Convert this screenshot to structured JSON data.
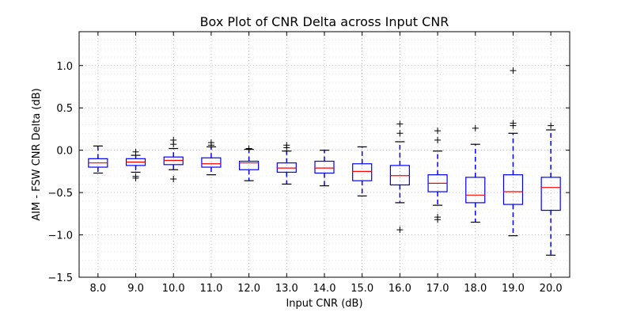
{
  "chart_data": {
    "type": "box",
    "title": "Box Plot of CNR Delta across Input CNR",
    "xlabel": "Input CNR (dB)",
    "ylabel": "AIM - FSW CNR Delta (dB)",
    "ylim": [
      -1.5,
      1.4
    ],
    "yticks": [
      -1.5,
      -1.0,
      -0.5,
      0.0,
      0.5,
      1.0
    ],
    "ytick_labels": [
      "−1.5",
      "−1.0",
      "−0.5",
      "0.0",
      "0.5",
      "1.0"
    ],
    "grid": true,
    "colors": {
      "box": "#0000ff",
      "median": "#ff0000",
      "flier": "#000000",
      "whisker_cap": "#000000",
      "grid": "#b0b0b0"
    },
    "categories": [
      "8.0",
      "9.0",
      "10.0",
      "11.0",
      "12.0",
      "13.0",
      "14.0",
      "15.0",
      "16.0",
      "17.0",
      "18.0",
      "19.0",
      "20.0"
    ],
    "boxes": [
      {
        "whislo": -0.27,
        "q1": -0.2,
        "med": -0.15,
        "q3": -0.1,
        "whishi": 0.05,
        "fliers": []
      },
      {
        "whislo": -0.26,
        "q1": -0.18,
        "med": -0.14,
        "q3": -0.1,
        "whishi": -0.06,
        "fliers": [
          -0.31,
          -0.33,
          -0.02
        ]
      },
      {
        "whislo": -0.23,
        "q1": -0.17,
        "med": -0.12,
        "q3": -0.08,
        "whishi": 0.02,
        "fliers": [
          -0.34,
          0.07,
          0.12
        ]
      },
      {
        "whislo": -0.29,
        "q1": -0.2,
        "med": -0.16,
        "q3": -0.09,
        "whishi": 0.04,
        "fliers": [
          0.06,
          0.09
        ]
      },
      {
        "whislo": -0.36,
        "q1": -0.23,
        "med": -0.15,
        "q3": -0.13,
        "whishi": 0.01,
        "fliers": [
          0.02
        ]
      },
      {
        "whislo": -0.4,
        "q1": -0.26,
        "med": -0.21,
        "q3": -0.15,
        "whishi": -0.01,
        "fliers": [
          0.03,
          0.06
        ]
      },
      {
        "whislo": -0.42,
        "q1": -0.27,
        "med": -0.21,
        "q3": -0.13,
        "whishi": 0.0,
        "fliers": []
      },
      {
        "whislo": -0.54,
        "q1": -0.36,
        "med": -0.25,
        "q3": -0.16,
        "whishi": 0.04,
        "fliers": []
      },
      {
        "whislo": -0.62,
        "q1": -0.41,
        "med": -0.3,
        "q3": -0.18,
        "whishi": 0.1,
        "fliers": [
          0.31,
          0.2,
          -0.94
        ]
      },
      {
        "whislo": -0.65,
        "q1": -0.49,
        "med": -0.39,
        "q3": -0.29,
        "whishi": -0.01,
        "fliers": [
          0.23,
          0.12,
          -0.79,
          -0.82
        ]
      },
      {
        "whislo": -0.85,
        "q1": -0.62,
        "med": -0.53,
        "q3": -0.32,
        "whishi": 0.07,
        "fliers": [
          0.26
        ]
      },
      {
        "whislo": -1.01,
        "q1": -0.64,
        "med": -0.49,
        "q3": -0.29,
        "whishi": 0.2,
        "fliers": [
          0.94,
          0.32,
          0.29
        ]
      },
      {
        "whislo": -1.24,
        "q1": -0.71,
        "med": -0.44,
        "q3": -0.32,
        "whishi": 0.24,
        "fliers": [
          0.29
        ]
      }
    ]
  }
}
